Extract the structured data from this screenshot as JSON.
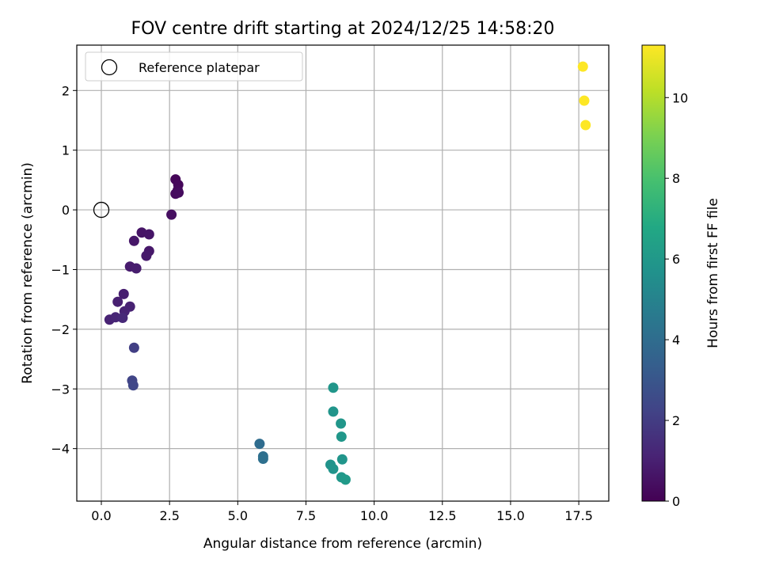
{
  "chart_data": {
    "type": "scatter",
    "title": "FOV centre drift starting at 2024/12/25 14:58:20",
    "xlabel": "Angular distance from reference (arcmin)",
    "ylabel": "Rotation from reference (arcmin)",
    "xlim": [
      -0.9,
      18.6
    ],
    "ylim": [
      -4.88,
      2.76
    ],
    "xticks": [
      0.0,
      2.5,
      5.0,
      7.5,
      10.0,
      12.5,
      15.0,
      17.5
    ],
    "xtick_labels": [
      "0.0",
      "2.5",
      "5.0",
      "7.5",
      "10.0",
      "12.5",
      "15.0",
      "17.5"
    ],
    "yticks": [
      -4,
      -3,
      -2,
      -1,
      0,
      1,
      2
    ],
    "ytick_labels": [
      "−4",
      "−3",
      "−2",
      "−1",
      "0",
      "1",
      "2"
    ],
    "grid": true,
    "legend": {
      "placement": "top-left",
      "entries": [
        {
          "label": "Reference platepar",
          "marker": "hollow-circle",
          "x": 0.0,
          "y": 0.0
        }
      ]
    },
    "colorbar": {
      "label": "Hours from first FF file",
      "colormap": "viridis",
      "range": [
        0,
        11.3
      ],
      "ticks": [
        0,
        2,
        4,
        6,
        8,
        10
      ],
      "tick_labels": [
        "0",
        "2",
        "4",
        "6",
        "8",
        "10"
      ]
    },
    "points": [
      {
        "x": 2.72,
        "y": 0.51,
        "c": 0.15
      },
      {
        "x": 2.82,
        "y": 0.42,
        "c": 0.2
      },
      {
        "x": 2.8,
        "y": 0.33,
        "c": 0.25
      },
      {
        "x": 2.72,
        "y": 0.27,
        "c": 0.3
      },
      {
        "x": 2.83,
        "y": 0.29,
        "c": 0.35
      },
      {
        "x": 2.57,
        "y": -0.08,
        "c": 0.45
      },
      {
        "x": 1.48,
        "y": -0.38,
        "c": 0.6
      },
      {
        "x": 1.75,
        "y": -0.41,
        "c": 0.65
      },
      {
        "x": 1.2,
        "y": -0.52,
        "c": 0.7
      },
      {
        "x": 1.75,
        "y": -0.69,
        "c": 0.75
      },
      {
        "x": 1.65,
        "y": -0.77,
        "c": 0.8
      },
      {
        "x": 1.05,
        "y": -0.95,
        "c": 0.85
      },
      {
        "x": 1.28,
        "y": -0.98,
        "c": 0.9
      },
      {
        "x": 0.82,
        "y": -1.41,
        "c": 0.95
      },
      {
        "x": 0.6,
        "y": -1.54,
        "c": 1.0
      },
      {
        "x": 1.05,
        "y": -1.62,
        "c": 1.05
      },
      {
        "x": 0.85,
        "y": -1.7,
        "c": 1.1
      },
      {
        "x": 0.3,
        "y": -1.84,
        "c": 1.1
      },
      {
        "x": 0.52,
        "y": -1.8,
        "c": 1.2
      },
      {
        "x": 0.78,
        "y": -1.81,
        "c": 1.3
      },
      {
        "x": 1.2,
        "y": -2.31,
        "c": 2.1
      },
      {
        "x": 1.13,
        "y": -2.86,
        "c": 2.3
      },
      {
        "x": 1.17,
        "y": -2.94,
        "c": 2.4
      },
      {
        "x": 5.8,
        "y": -3.92,
        "c": 4.0
      },
      {
        "x": 5.93,
        "y": -4.13,
        "c": 4.1
      },
      {
        "x": 5.93,
        "y": -4.17,
        "c": 4.15
      },
      {
        "x": 8.5,
        "y": -2.98,
        "c": 5.9
      },
      {
        "x": 8.5,
        "y": -3.38,
        "c": 5.85
      },
      {
        "x": 8.78,
        "y": -3.58,
        "c": 5.9
      },
      {
        "x": 8.8,
        "y": -3.8,
        "c": 5.95
      },
      {
        "x": 8.83,
        "y": -4.18,
        "c": 5.85
      },
      {
        "x": 8.4,
        "y": -4.27,
        "c": 5.75
      },
      {
        "x": 8.5,
        "y": -4.34,
        "c": 5.8
      },
      {
        "x": 8.8,
        "y": -4.48,
        "c": 6.0
      },
      {
        "x": 8.95,
        "y": -4.52,
        "c": 6.1
      },
      {
        "x": 17.65,
        "y": 2.4,
        "c": 11.3
      },
      {
        "x": 17.7,
        "y": 1.83,
        "c": 11.3
      },
      {
        "x": 17.75,
        "y": 1.42,
        "c": 11.3
      }
    ]
  }
}
